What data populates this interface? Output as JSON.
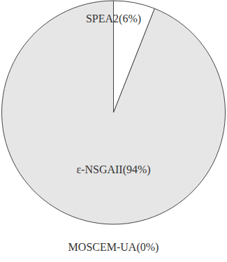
{
  "chart_data": {
    "type": "pie",
    "categories": [
      "SPEA2",
      "ε-NSGAII",
      "MOSCEM-UA"
    ],
    "values": [
      6,
      94,
      0
    ],
    "value_labels": [
      "(6%)",
      "(94%)",
      "(0%)"
    ],
    "colors": [
      "#ffffff",
      "#e6e6e6",
      "#e6e6e6"
    ],
    "data_labels": true
  }
}
